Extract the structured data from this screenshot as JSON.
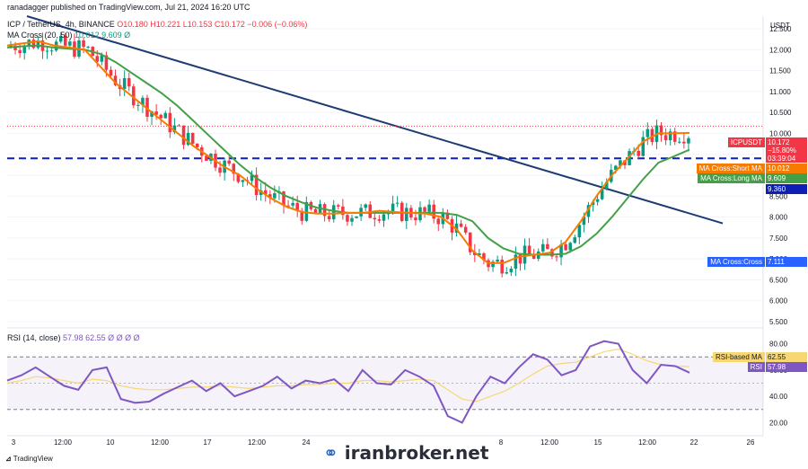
{
  "header": {
    "published": "ranadagger published on TradingView.com, Jul 21, 2024 16:20 UTC",
    "symbol": "ICP / TetherUS, 4h, BINANCE",
    "ohlc": "O10.180 H10.221 L10.153 C10.172 −0.006 (−0.06%)",
    "ma_label": "MA Cross (20, 50)",
    "ma_values": "10.012  9.609  Ø",
    "rsi_label": "RSI (14, close)",
    "rsi_values": "57.98  62.55  Ø  Ø  Ø  Ø"
  },
  "axis": {
    "currency": "USDT",
    "price_ticks": [
      "12.500",
      "12.000",
      "11.500",
      "11.000",
      "10.500",
      "10.000",
      "9.500",
      "9.000",
      "8.500",
      "8.000",
      "7.500",
      "7.000",
      "6.500",
      "6.000",
      "5.500"
    ],
    "rsi_ticks": [
      "80.00",
      "60.00",
      "40.00",
      "20.00"
    ],
    "time_ticks": [
      "3",
      "12:00",
      "10",
      "12:00",
      "17",
      "12:00",
      "24",
      "8",
      "12:00",
      "15",
      "12:00",
      "22",
      "26"
    ]
  },
  "labels": {
    "price_tag": "ICPUSDT",
    "price_value": "10.172",
    "price_change": "−15.80%",
    "countdown": "03:39:04",
    "short_ma": "MA Cross:Short MA",
    "short_ma_value": "10.012",
    "long_ma": "MA Cross:Long MA",
    "long_ma_value": "9.609",
    "level_value": "9.360",
    "cross": "MA Cross:Cross",
    "cross_value": "7.111",
    "rsi_ma": "RSI-based MA",
    "rsi_ma_value": "62.55",
    "rsi_name": "RSI",
    "rsi_value": "57.98"
  },
  "footer": {
    "tradingview": "TradingView",
    "brand": "iranbroker.net"
  },
  "colors": {
    "up": "#089981",
    "down": "#f23645",
    "short_ma": "#f57c00",
    "long_ma": "#43a047",
    "trend": "#1f3b73",
    "level": "#0d1fb5",
    "rsi": "#7e57c2",
    "rsi_ma": "#f7d774"
  },
  "chart_data": [
    {
      "type": "candlestick",
      "title": "ICP / TetherUS, 4h, BINANCE",
      "ylim": [
        5.5,
        12.8
      ],
      "series": [
        {
          "name": "MA Cross:Short MA",
          "values": [
            12.1,
            12.15,
            12.2,
            12.1,
            12.05,
            12.0,
            11.6,
            11.2,
            10.9,
            10.6,
            10.3,
            10.0,
            9.7,
            9.45,
            9.2,
            9.0,
            8.7,
            8.45,
            8.25,
            8.12,
            8.08,
            8.08,
            8.1,
            8.1,
            8.15,
            8.12,
            8.1,
            8.08,
            8.0,
            7.7,
            7.2,
            6.9,
            6.9,
            7.05,
            7.1,
            7.15,
            7.4,
            7.9,
            8.5,
            9.0,
            9.4,
            9.8,
            10.0,
            10.0,
            10.01
          ]
        },
        {
          "name": "MA Cross:Long MA",
          "values": [
            12.05,
            12.08,
            12.1,
            12.05,
            12.02,
            12.0,
            11.9,
            11.7,
            11.45,
            11.2,
            10.95,
            10.65,
            10.3,
            9.95,
            9.6,
            9.25,
            8.95,
            8.7,
            8.5,
            8.35,
            8.22,
            8.15,
            8.1,
            8.1,
            8.1,
            8.1,
            8.1,
            8.1,
            8.1,
            8.05,
            7.9,
            7.5,
            7.25,
            7.12,
            7.1,
            7.1,
            7.12,
            7.3,
            7.6,
            8.0,
            8.45,
            8.9,
            9.3,
            9.45,
            9.61
          ]
        }
      ],
      "last_close": 10.172,
      "horizontal_level": 9.36,
      "trendline": [
        {
          "x": "start",
          "y": 12.8
        },
        {
          "x": "end",
          "y": 7.85
        }
      ]
    },
    {
      "type": "line",
      "title": "RSI (14, close)",
      "ylim": [
        10,
        90
      ],
      "bands": [
        30,
        70
      ],
      "series": [
        {
          "name": "RSI",
          "values": [
            52,
            56,
            62,
            55,
            48,
            45,
            60,
            62,
            38,
            35,
            36,
            42,
            47,
            52,
            44,
            50,
            40,
            44,
            48,
            55,
            46,
            52,
            50,
            53,
            44,
            60,
            50,
            49,
            60,
            55,
            48,
            25,
            20,
            40,
            55,
            50,
            62,
            72,
            68,
            56,
            60,
            78,
            82,
            80,
            60,
            50,
            64,
            63,
            57.98
          ]
        },
        {
          "name": "RSI-based MA",
          "values": [
            50,
            52,
            55,
            54,
            52,
            50,
            53,
            52,
            48,
            46,
            45,
            45,
            46,
            47,
            47,
            48,
            47,
            46,
            47,
            48,
            48,
            49,
            49,
            50,
            50,
            52,
            52,
            51,
            52,
            53,
            52,
            45,
            38,
            36,
            40,
            44,
            50,
            57,
            63,
            65,
            66,
            70,
            74,
            76,
            72,
            67,
            64,
            63,
            62.55
          ]
        }
      ]
    }
  ]
}
